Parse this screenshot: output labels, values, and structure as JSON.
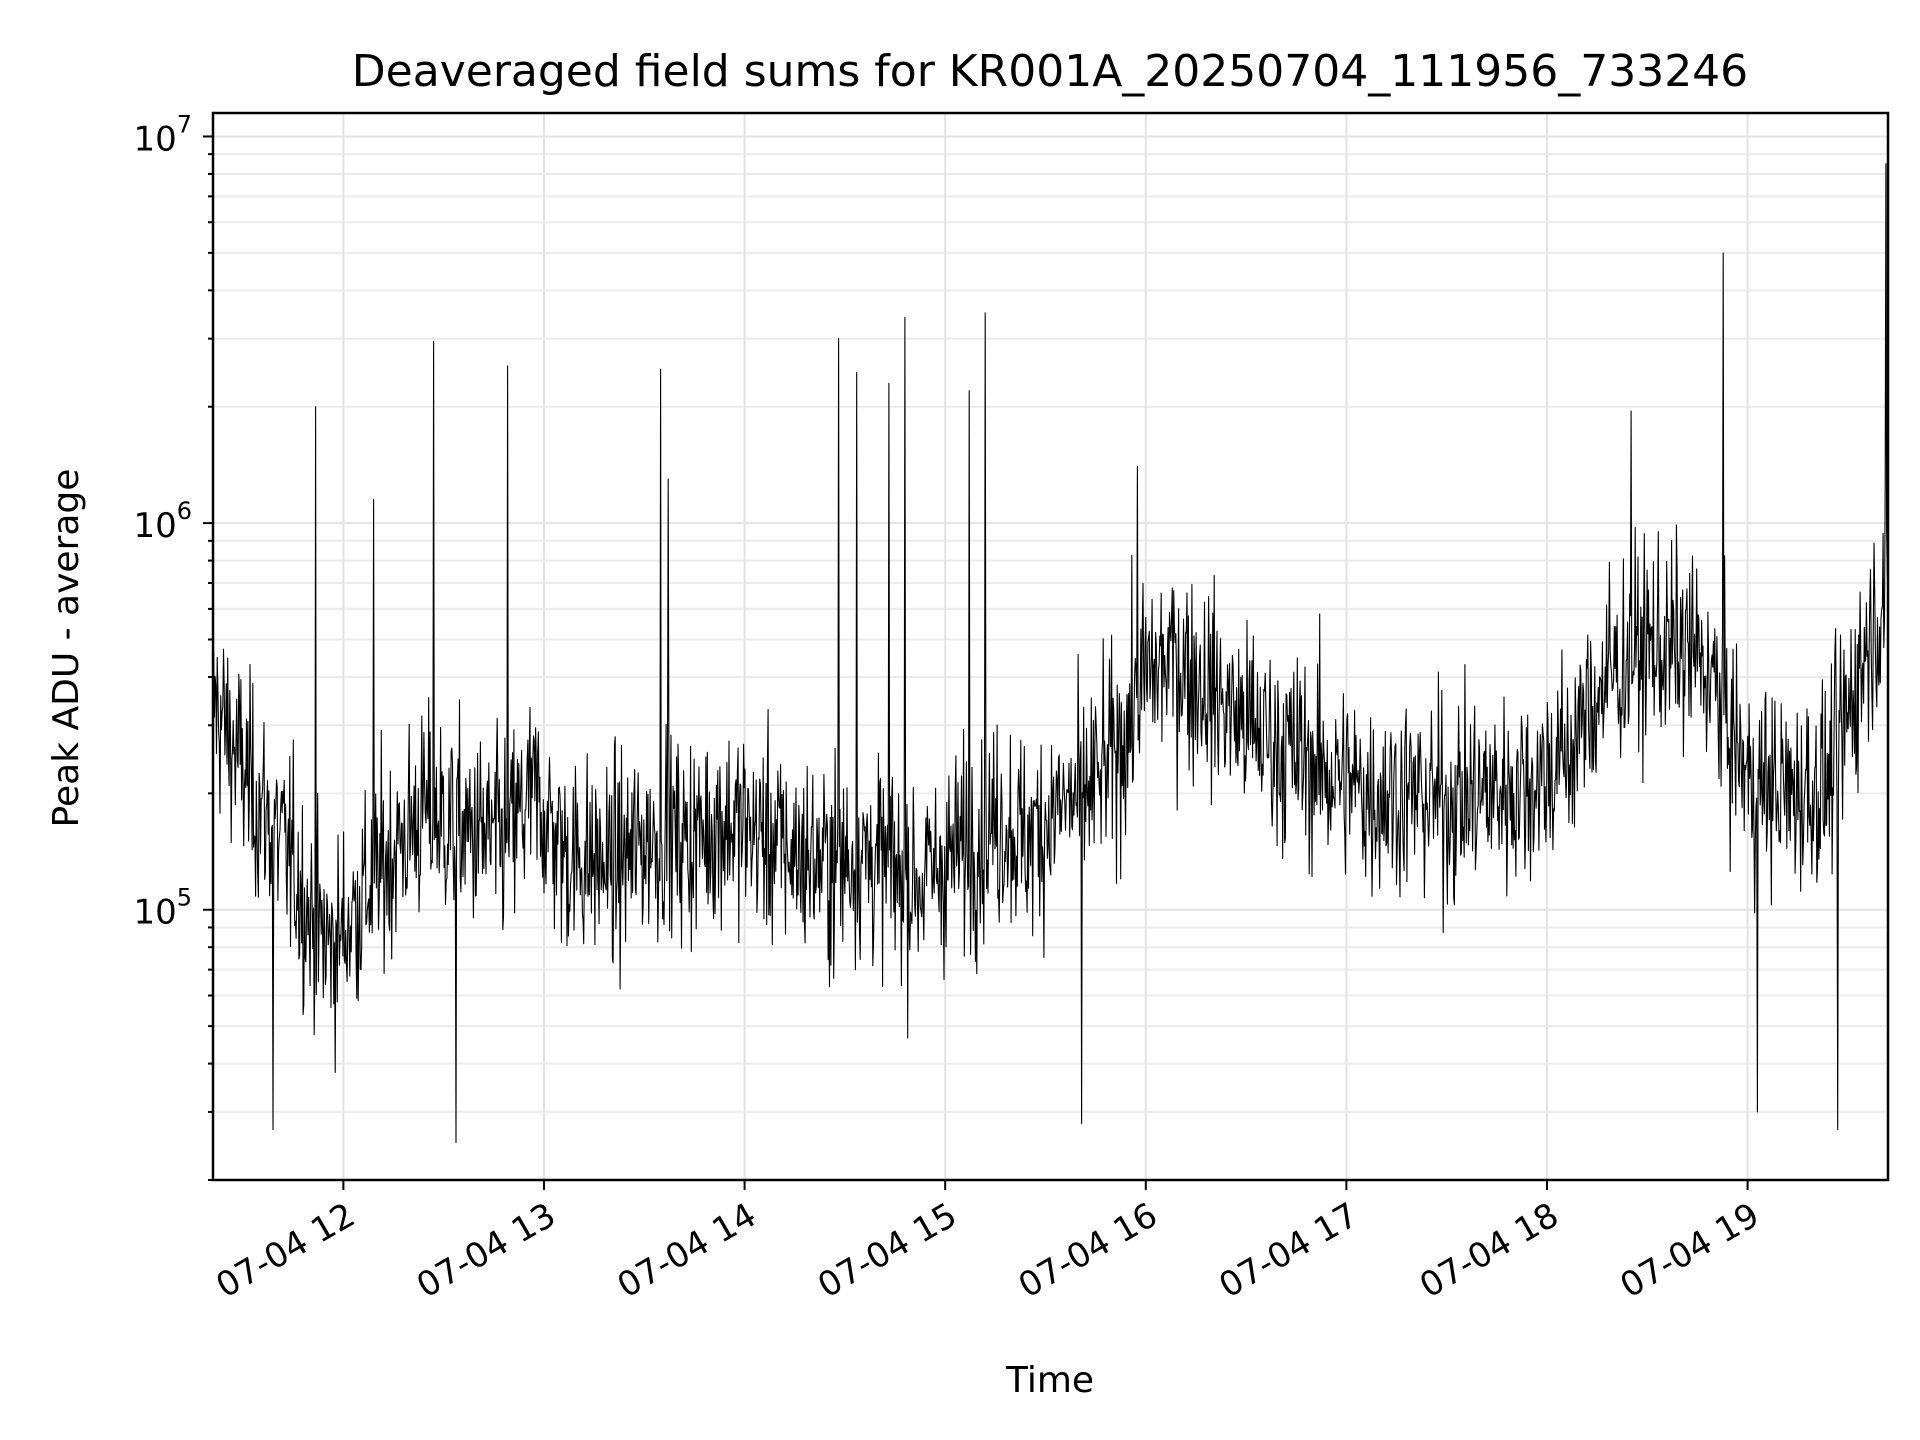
{
  "chart_data": {
    "type": "line",
    "title": "Deaveraged field sums for KR001A_20250704_111956_733246",
    "xlabel": "Time",
    "ylabel": "Peak ADU - average",
    "yscale": "log",
    "grid": true,
    "x_tick_labels": [
      "07-04 12",
      "07-04 13",
      "07-04 14",
      "07-04 15",
      "07-04 16",
      "07-04 17",
      "07-04 18",
      "07-04 19"
    ],
    "y_tick_labels": [
      {
        "base": "10",
        "exp": "5",
        "value": 100000
      },
      {
        "base": "10",
        "exp": "6",
        "value": 1000000
      },
      {
        "base": "10",
        "exp": "7",
        "value": 10000000
      }
    ],
    "xlim_hours": [
      11.35,
      19.7
    ],
    "ylim": [
      20000,
      11500000
    ],
    "series": [
      {
        "color": "#000000",
        "x_hours": [
          11.35,
          11.55,
          11.75,
          11.85,
          11.95,
          12.15,
          12.4,
          12.6,
          12.8,
          12.95,
          13.1,
          13.35,
          13.5,
          13.6,
          13.7,
          13.9,
          14.05,
          14.25,
          14.45,
          14.5,
          14.6,
          14.7,
          14.8,
          14.9,
          15.05,
          15.2,
          15.3,
          15.4,
          15.55,
          15.7,
          15.85,
          16.0,
          16.15,
          16.3,
          16.5,
          16.7,
          16.9,
          17.1,
          17.3,
          17.5,
          17.7,
          17.9,
          18.1,
          18.3,
          18.5,
          18.7,
          18.8,
          18.9,
          19.0,
          19.2,
          19.4,
          19.6,
          19.7
        ],
        "y_values": [
          350000,
          200000,
          130000,
          90000,
          80000,
          120000,
          180000,
          160000,
          150000,
          200000,
          140000,
          130000,
          150000,
          160000,
          150000,
          170000,
          160000,
          140000,
          130000,
          135000,
          140000,
          130000,
          120000,
          120000,
          140000,
          160000,
          170000,
          150000,
          180000,
          200000,
          250000,
          400000,
          450000,
          380000,
          300000,
          260000,
          230000,
          200000,
          200000,
          190000,
          200000,
          210000,
          250000,
          400000,
          480000,
          470000,
          420000,
          300000,
          220000,
          200000,
          210000,
          500000,
          700000
        ],
        "spikes": [
          {
            "x_hours": 11.86,
            "value": 2000000
          },
          {
            "x_hours": 12.15,
            "value": 1150000
          },
          {
            "x_hours": 12.45,
            "value": 2950000
          },
          {
            "x_hours": 12.82,
            "value": 2550000
          },
          {
            "x_hours": 13.58,
            "value": 2500000
          },
          {
            "x_hours": 13.62,
            "value": 1300000
          },
          {
            "x_hours": 14.47,
            "value": 3000000
          },
          {
            "x_hours": 14.56,
            "value": 2450000
          },
          {
            "x_hours": 14.72,
            "value": 2300000
          },
          {
            "x_hours": 14.8,
            "value": 3400000
          },
          {
            "x_hours": 15.12,
            "value": 2200000
          },
          {
            "x_hours": 15.2,
            "value": 3500000
          },
          {
            "x_hours": 15.96,
            "value": 1400000
          },
          {
            "x_hours": 18.42,
            "value": 1950000
          },
          {
            "x_hours": 18.88,
            "value": 5000000
          },
          {
            "x_hours": 19.69,
            "value": 8500000
          }
        ],
        "dips": [
          {
            "x_hours": 11.65,
            "value": 27000
          },
          {
            "x_hours": 12.56,
            "value": 25000
          },
          {
            "x_hours": 15.68,
            "value": 28000
          },
          {
            "x_hours": 19.05,
            "value": 30000
          },
          {
            "x_hours": 19.45,
            "value": 27000
          }
        ]
      }
    ]
  }
}
